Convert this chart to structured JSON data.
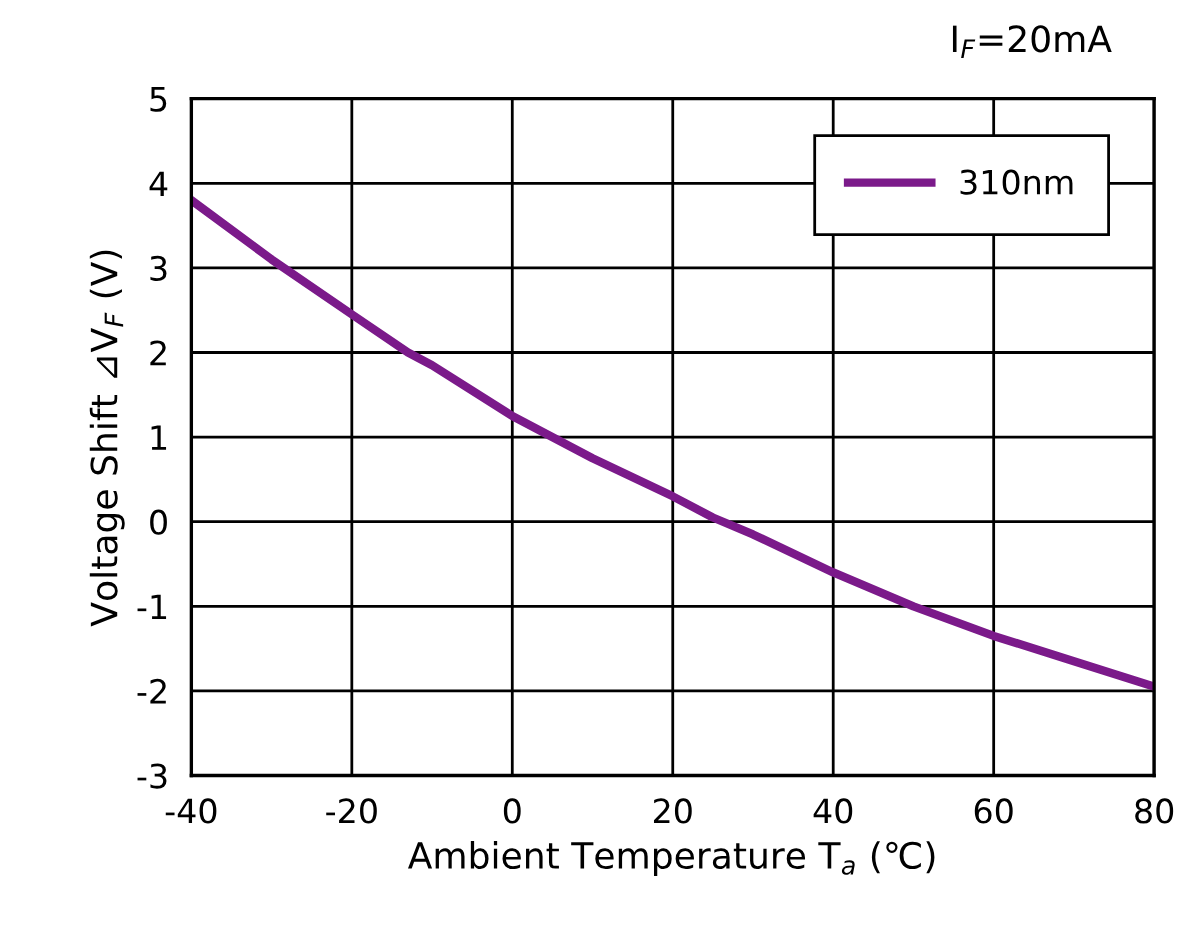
{
  "chart_data": {
    "type": "line",
    "annotations": [
      "I$_{F}$=20mA"
    ],
    "xlabel": "Ambient Temperature T$_{a}$ (℃)",
    "ylabel": "Voltage Shift ⊿V$_{F}$ (V)",
    "xlim": [
      -40,
      80
    ],
    "ylim": [
      -3,
      5
    ],
    "xticks": [
      -40,
      -20,
      0,
      20,
      40,
      60,
      80
    ],
    "yticks": [
      -3,
      -2,
      -1,
      0,
      1,
      2,
      3,
      4,
      5
    ],
    "grid": true,
    "legend": "top right",
    "marker": "none",
    "line_style": "solid",
    "series": [
      {
        "name": "310nm",
        "color": "#7b1a8a",
        "x": [
          -40,
          -30,
          -20,
          -13,
          -10,
          0,
          10,
          20,
          25,
          30,
          40,
          50,
          60,
          70,
          80
        ],
        "values": [
          3.8,
          3.1,
          2.45,
          2.0,
          1.85,
          1.25,
          0.75,
          0.3,
          0.05,
          -0.15,
          -0.6,
          -1.0,
          -1.35,
          -1.65,
          -1.95
        ]
      }
    ]
  }
}
